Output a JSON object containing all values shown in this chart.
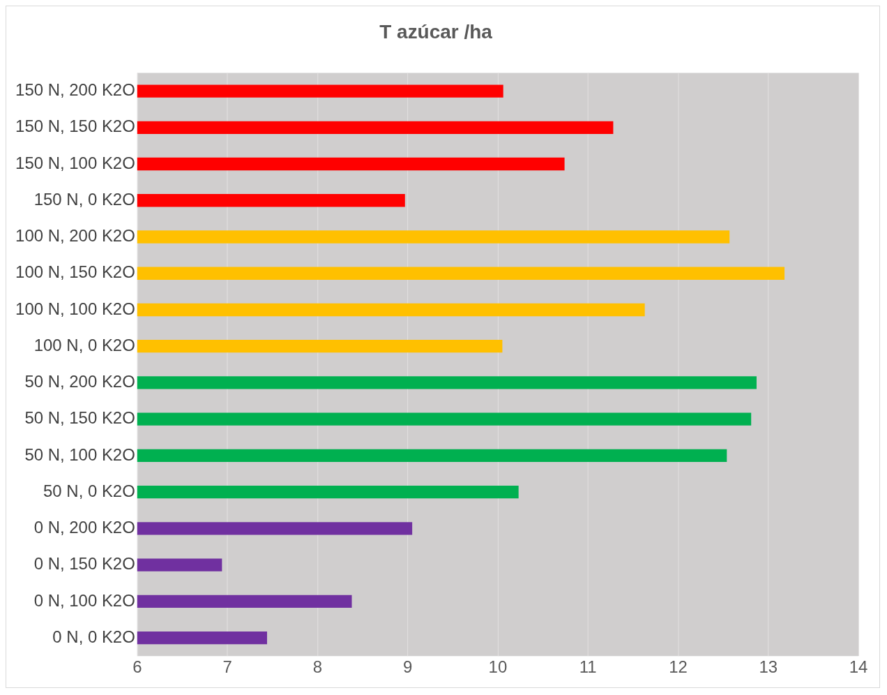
{
  "chart_data": {
    "type": "bar",
    "orientation": "horizontal",
    "title": "T azúcar /ha",
    "categories": [
      "150 N, 200 K2O",
      "150 N, 150 K2O",
      "150 N, 100 K2O",
      "150 N, 0 K2O",
      "100 N, 200 K2O",
      "100 N, 150 K2O",
      "100 N, 100 K2O",
      "100 N, 0 K2O",
      "50 N, 200 K2O",
      "50 N, 150 K2O",
      "50 N, 100 K2O",
      "50 N, 0 K2O",
      "0 N, 200 K2O",
      "0 N, 150 K2O",
      "0 N, 100 K2O",
      "0 N, 0 K2O"
    ],
    "values": [
      10.06,
      11.28,
      10.74,
      8.97,
      12.57,
      13.18,
      11.63,
      10.05,
      12.87,
      12.81,
      12.54,
      10.23,
      9.05,
      6.94,
      8.38,
      7.44
    ],
    "colors": [
      "#ff0000",
      "#ff0000",
      "#ff0000",
      "#ff0000",
      "#ffc000",
      "#ffc000",
      "#ffc000",
      "#ffc000",
      "#00b050",
      "#00b050",
      "#00b050",
      "#00b050",
      "#7030a0",
      "#7030a0",
      "#7030a0",
      "#7030a0"
    ],
    "xlim": [
      6,
      14
    ],
    "xticks": [
      6,
      7,
      8,
      9,
      10,
      11,
      12,
      13,
      14
    ],
    "grid": "x",
    "legend": false
  }
}
